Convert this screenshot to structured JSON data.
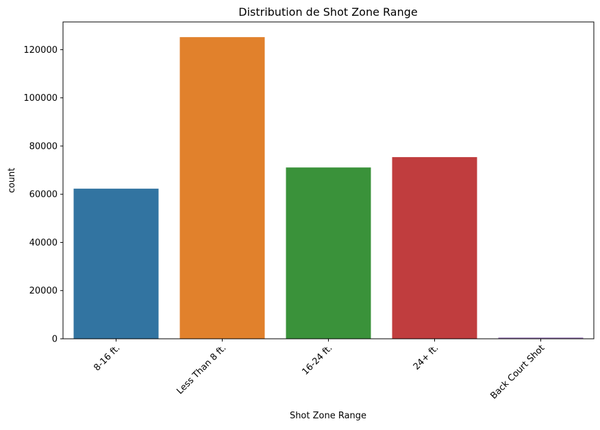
{
  "chart_data": {
    "type": "bar",
    "title": "Distribution de Shot Zone Range",
    "xlabel": "Shot Zone Range",
    "ylabel": "count",
    "categories": [
      "8-16 ft.",
      "Less Than 8 ft.",
      "16-24 ft.",
      "24+ ft.",
      "Back Court Shot"
    ],
    "values": [
      62300,
      125200,
      71100,
      75400,
      500
    ],
    "colors": [
      "#3274a1",
      "#e1812c",
      "#3a923a",
      "#c03d3e",
      "#9372b2"
    ],
    "ylim": [
      0,
      131500
    ],
    "yticks": [
      0,
      20000,
      40000,
      60000,
      80000,
      100000,
      120000
    ],
    "ytick_labels": [
      "0",
      "20000",
      "40000",
      "60000",
      "80000",
      "100000",
      "120000"
    ],
    "xtick_rotation": 45,
    "grid": false,
    "legend": false
  }
}
